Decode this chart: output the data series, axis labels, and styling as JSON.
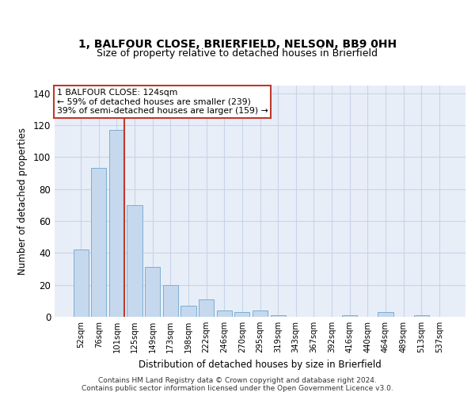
{
  "title": "1, BALFOUR CLOSE, BRIERFIELD, NELSON, BB9 0HH",
  "subtitle": "Size of property relative to detached houses in Brierfield",
  "xlabel": "Distribution of detached houses by size in Brierfield",
  "ylabel": "Number of detached properties",
  "categories": [
    "52sqm",
    "76sqm",
    "101sqm",
    "125sqm",
    "149sqm",
    "173sqm",
    "198sqm",
    "222sqm",
    "246sqm",
    "270sqm",
    "295sqm",
    "319sqm",
    "343sqm",
    "367sqm",
    "392sqm",
    "416sqm",
    "440sqm",
    "464sqm",
    "489sqm",
    "513sqm",
    "537sqm"
  ],
  "values": [
    42,
    93,
    117,
    70,
    31,
    20,
    7,
    11,
    4,
    3,
    4,
    1,
    0,
    0,
    0,
    1,
    0,
    3,
    0,
    1,
    0
  ],
  "bar_color": "#c5d8ed",
  "bar_edge_color": "#7bafd4",
  "highlight_bar_index": 2,
  "vline_color": "#c0392b",
  "annotation_text": "1 BALFOUR CLOSE: 124sqm\n← 59% of detached houses are smaller (239)\n39% of semi-detached houses are larger (159) →",
  "annotation_box_color": "white",
  "annotation_box_edge_color": "#c0392b",
  "ylim": [
    0,
    145
  ],
  "yticks": [
    0,
    20,
    40,
    60,
    80,
    100,
    120,
    140
  ],
  "grid_color": "#c8d4e8",
  "background_color": "#e8eef8",
  "title_fontsize": 10,
  "subtitle_fontsize": 9,
  "footer_text": "Contains HM Land Registry data © Crown copyright and database right 2024.\nContains public sector information licensed under the Open Government Licence v3.0."
}
